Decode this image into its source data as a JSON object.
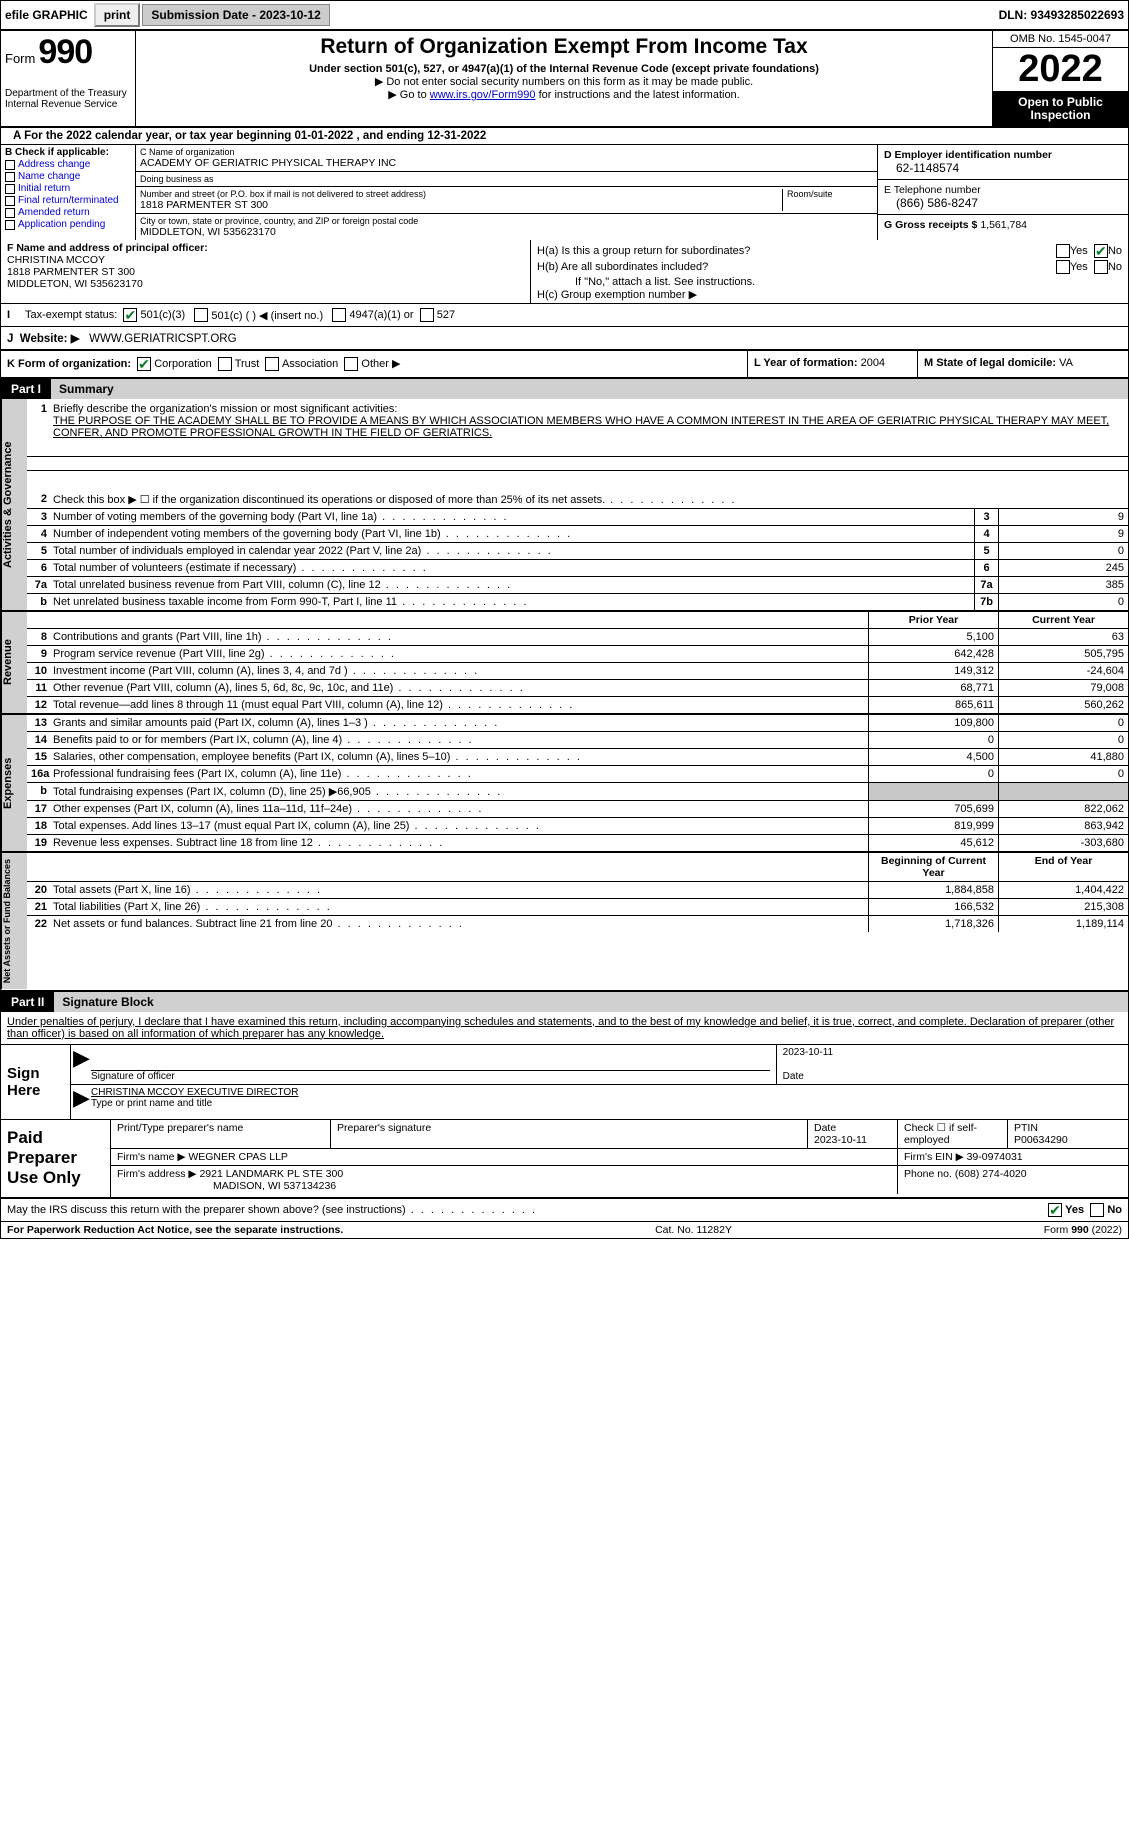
{
  "topbar": {
    "efile_label": "efile GRAPHIC",
    "print_btn": "print",
    "submission_label": "Submission Date - 2023-10-12",
    "dln_label": "DLN: 93493285022693"
  },
  "header": {
    "form_label": "Form",
    "form_num": "990",
    "dept": "Department of the Treasury\nInternal Revenue Service",
    "title": "Return of Organization Exempt From Income Tax",
    "subtitle": "Under section 501(c), 527, or 4947(a)(1) of the Internal Revenue Code (except private foundations)",
    "note1": "▶ Do not enter social security numbers on this form as it may be made public.",
    "note2_pre": "▶ Go to ",
    "note2_link": "www.irs.gov/Form990",
    "note2_post": " for instructions and the latest information.",
    "omb": "OMB No. 1545-0047",
    "year": "2022",
    "openpub": "Open to Public Inspection"
  },
  "period": {
    "text": "For the 2022 calendar year, or tax year beginning 01-01-2022    , and ending 12-31-2022"
  },
  "blockB": {
    "label": "B Check if applicable:",
    "addr_change": "Address change",
    "name_change": "Name change",
    "initial": "Initial return",
    "final": "Final return/terminated",
    "amended": "Amended return",
    "app_pending": "Application pending"
  },
  "blockC": {
    "name_lbl": "C Name of organization",
    "name": "ACADEMY OF GERIATRIC PHYSICAL THERAPY INC",
    "dba_lbl": "Doing business as",
    "dba": "",
    "street_lbl": "Number and street (or P.O. box if mail is not delivered to street address)",
    "room_lbl": "Room/suite",
    "street": "1818 PARMENTER ST 300",
    "city_lbl": "City or town, state or province, country, and ZIP or foreign postal code",
    "city": "MIDDLETON, WI  535623170"
  },
  "blockD": {
    "ein_lbl": "D Employer identification number",
    "ein": "62-1148574",
    "phone_lbl": "E Telephone number",
    "phone": "(866) 586-8247",
    "gross_lbl": "G Gross receipts $",
    "gross": "1,561,784"
  },
  "officer": {
    "label": "F  Name and address of principal officer:",
    "name": "CHRISTINA MCCOY",
    "addr1": "1818 PARMENTER ST 300",
    "addr2": "MIDDLETON, WI  535623170"
  },
  "ha": {
    "ha_lbl": "H(a)  Is this a group return for subordinates?",
    "hb_lbl": "H(b)  Are all subordinates included?",
    "hb_note": "If \"No,\" attach a list. See instructions.",
    "hc_lbl": "H(c)  Group exemption number ▶",
    "yes": "Yes",
    "no": "No"
  },
  "status": {
    "label_i": "I",
    "label": "Tax-exempt status:",
    "c3": "501(c)(3)",
    "c_other": "501(c) (  ) ◀ (insert no.)",
    "a1": "4947(a)(1) or",
    "s527": "527"
  },
  "website": {
    "label_j": "J",
    "label": "Website: ▶",
    "val": "WWW.GERIATRICSPT.ORG"
  },
  "formorg": {
    "k_label": "K Form of organization:",
    "corp": "Corporation",
    "trust": "Trust",
    "assoc": "Association",
    "other": "Other ▶",
    "l_label": "L Year of formation:",
    "l_val": "2004",
    "m_label": "M State of legal domicile:",
    "m_val": "VA"
  },
  "part1": {
    "num": "Part I",
    "title": "Summary"
  },
  "vtabs": {
    "act": "Activities & Governance",
    "rev": "Revenue",
    "exp": "Expenses",
    "net": "Net Assets or Fund Balances"
  },
  "mission": {
    "q1_pre": "Briefly describe the organization's mission or most significant activities:",
    "text": "THE PURPOSE OF THE ACADEMY SHALL BE TO PROVIDE A MEANS BY WHICH ASSOCIATION MEMBERS WHO HAVE A COMMON INTEREST IN THE AREA OF GERIATRIC PHYSICAL THERAPY MAY MEET, CONFER, AND PROMOTE PROFESSIONAL GROWTH IN THE FIELD OF GERIATRICS."
  },
  "lines_act": [
    {
      "n": "2",
      "t": "Check this box ▶ ☐ if the organization discontinued its operations or disposed of more than 25% of its net assets.",
      "box": "",
      "v": ""
    },
    {
      "n": "3",
      "t": "Number of voting members of the governing body (Part VI, line 1a)",
      "box": "3",
      "v": "9"
    },
    {
      "n": "4",
      "t": "Number of independent voting members of the governing body (Part VI, line 1b)",
      "box": "4",
      "v": "9"
    },
    {
      "n": "5",
      "t": "Total number of individuals employed in calendar year 2022 (Part V, line 2a)",
      "box": "5",
      "v": "0"
    },
    {
      "n": "6",
      "t": "Total number of volunteers (estimate if necessary)",
      "box": "6",
      "v": "245"
    },
    {
      "n": "7a",
      "t": "Total unrelated business revenue from Part VIII, column (C), line 12",
      "box": "7a",
      "v": "385"
    },
    {
      "n": "b",
      "t": "Net unrelated business taxable income from Form 990-T, Part I, line 11",
      "box": "7b",
      "v": "0"
    }
  ],
  "col_hdrs": {
    "prior": "Prior Year",
    "current": "Current Year"
  },
  "lines_rev": [
    {
      "n": "8",
      "t": "Contributions and grants (Part VIII, line 1h)",
      "p": "5,100",
      "c": "63"
    },
    {
      "n": "9",
      "t": "Program service revenue (Part VIII, line 2g)",
      "p": "642,428",
      "c": "505,795"
    },
    {
      "n": "10",
      "t": "Investment income (Part VIII, column (A), lines 3, 4, and 7d )",
      "p": "149,312",
      "c": "-24,604"
    },
    {
      "n": "11",
      "t": "Other revenue (Part VIII, column (A), lines 5, 6d, 8c, 9c, 10c, and 11e)",
      "p": "68,771",
      "c": "79,008"
    },
    {
      "n": "12",
      "t": "Total revenue—add lines 8 through 11 (must equal Part VIII, column (A), line 12)",
      "p": "865,611",
      "c": "560,262"
    }
  ],
  "lines_exp": [
    {
      "n": "13",
      "t": "Grants and similar amounts paid (Part IX, column (A), lines 1–3 )",
      "p": "109,800",
      "c": "0"
    },
    {
      "n": "14",
      "t": "Benefits paid to or for members (Part IX, column (A), line 4)",
      "p": "0",
      "c": "0"
    },
    {
      "n": "15",
      "t": "Salaries, other compensation, employee benefits (Part IX, column (A), lines 5–10)",
      "p": "4,500",
      "c": "41,880"
    },
    {
      "n": "16a",
      "t": "Professional fundraising fees (Part IX, column (A), line 11e)",
      "p": "0",
      "c": "0"
    },
    {
      "n": "b",
      "t": "Total fundraising expenses (Part IX, column (D), line 25) ▶66,905",
      "p": "shade",
      "c": "shade"
    },
    {
      "n": "17",
      "t": "Other expenses (Part IX, column (A), lines 11a–11d, 11f–24e)",
      "p": "705,699",
      "c": "822,062"
    },
    {
      "n": "18",
      "t": "Total expenses. Add lines 13–17 (must equal Part IX, column (A), line 25)",
      "p": "819,999",
      "c": "863,942"
    },
    {
      "n": "19",
      "t": "Revenue less expenses. Subtract line 18 from line 12",
      "p": "45,612",
      "c": "-303,680"
    }
  ],
  "col_hdrs2": {
    "boy": "Beginning of Current Year",
    "eoy": "End of Year"
  },
  "lines_net": [
    {
      "n": "20",
      "t": "Total assets (Part X, line 16)",
      "p": "1,884,858",
      "c": "1,404,422"
    },
    {
      "n": "21",
      "t": "Total liabilities (Part X, line 26)",
      "p": "166,532",
      "c": "215,308"
    },
    {
      "n": "22",
      "t": "Net assets or fund balances. Subtract line 21 from line 20",
      "p": "1,718,326",
      "c": "1,189,114"
    }
  ],
  "part2": {
    "num": "Part II",
    "title": "Signature Block",
    "decl": "Under penalties of perjury, I declare that I have examined this return, including accompanying schedules and statements, and to the best of my knowledge and belief, it is true, correct, and complete. Declaration of preparer (other than officer) is based on all information of which preparer has any knowledge."
  },
  "sign": {
    "label": "Sign Here",
    "sig_of": "Signature of officer",
    "date": "2023-10-11",
    "date_lbl": "Date",
    "name": "CHRISTINA MCCOY EXECUTIVE DIRECTOR",
    "name_lbl": "Type or print name and title"
  },
  "prep": {
    "label": "Paid Preparer Use Only",
    "pname_lbl": "Print/Type preparer's name",
    "pname": "",
    "psig_lbl": "Preparer's signature",
    "psig": "",
    "pdate_lbl": "Date",
    "pdate": "2023-10-11",
    "self_lbl": "Check ☐ if self-employed",
    "ptin_lbl": "PTIN",
    "ptin": "P00634290",
    "firm_lbl": "Firm's name    ▶",
    "firm": "WEGNER CPAS LLP",
    "fein_lbl": "Firm's EIN ▶",
    "fein": "39-0974031",
    "faddr_lbl": "Firm's address ▶",
    "faddr1": "2921 LANDMARK PL STE 300",
    "faddr2": "MADISON, WI  537134236",
    "fphone_lbl": "Phone no.",
    "fphone": "(608) 274-4020"
  },
  "discuss": {
    "text": "May the IRS discuss this return with the preparer shown above? (see instructions)",
    "yes": "Yes",
    "no": "No"
  },
  "footer": {
    "left": "For Paperwork Reduction Act Notice, see the separate instructions.",
    "mid": "Cat. No. 11282Y",
    "right": "Form 990 (2022)"
  }
}
